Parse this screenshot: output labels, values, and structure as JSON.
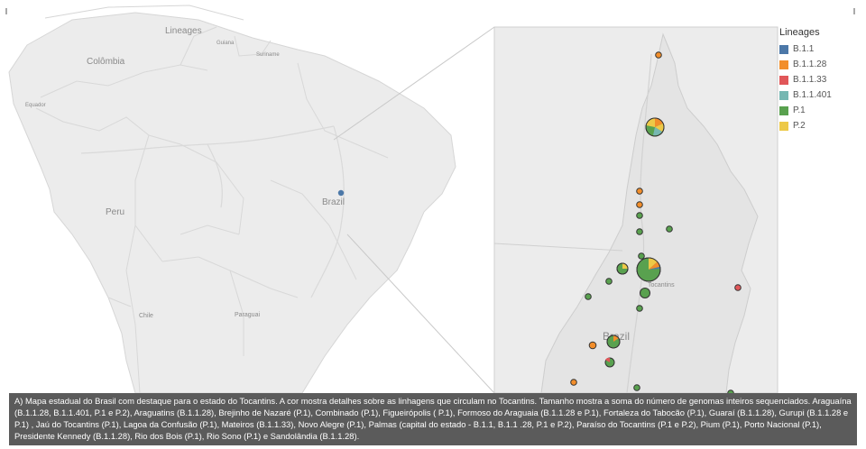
{
  "legend": {
    "title": "Lineages",
    "items": [
      {
        "label": "B.1.1",
        "color": "#4c78a8"
      },
      {
        "label": "B.1.1.28",
        "color": "#f28e2b"
      },
      {
        "label": "B.1.1.33",
        "color": "#e15759"
      },
      {
        "label": "B.1.1.401",
        "color": "#76b7b2"
      },
      {
        "label": "P.1",
        "color": "#59a14f"
      },
      {
        "label": "P.2",
        "color": "#edc948"
      }
    ]
  },
  "map_labels": {
    "lineages_country": "Lineages",
    "colombia": "Colômbia",
    "equador": "Equador",
    "peru": "Peru",
    "brazil_left": "Brazil",
    "chile": "Chile",
    "paraguai": "Paraguai",
    "tocantins": "Tocantins",
    "brazil_right": "Brazil",
    "guiana": "Guiana",
    "suriname": "Suriname"
  },
  "caption": "A) Mapa estadual do Brasil com destaque para o estado do Tocantins. A cor mostra detalhes sobre as linhagens que circulam no Tocantins. Tamanho mostra a soma do número de genomas inteiros sequenciados. Araguaína (B.1.1.28, B.1.1.401, P.1 e P.2), Araguatins (B.1.1.28), Brejinho de Nazaré (P.1), Combinado (P.1), Figueirópolis ( P.1), Formoso do Araguaia (B.1.1.28 e P.1), Fortaleza do Tabocão (P.1), Guaraí (B.1.1.28), Gurupi (B.1.1.28 e P.1) , Jaú do Tocantins (P.1), Lagoa da Confusão (P.1), Mateiros (B.1.1.33), Novo Alegre (P.1), Palmas (capital do estado - B.1.1, B.1.1 .28, P.1 e P.2), Paraíso do Tocantins (P.1 e P.2), Pium (P.1), Porto Nacional (P.1), Presidente Kennedy (B.1.1.28), Rio dos Bois (P.1), Rio Sono (P.1) e Sandolândia (B.1.1.28).",
  "markers": [
    {
      "id": "araguatins",
      "lineages": [
        "B.1.1.28"
      ]
    },
    {
      "id": "araguaina",
      "lineages": [
        "B.1.1.28",
        "B.1.1.401",
        "P.1",
        "P.2"
      ]
    },
    {
      "id": "guarai",
      "lineages": [
        "B.1.1.28"
      ]
    },
    {
      "id": "palmas",
      "lineages": [
        "B.1.1",
        "B.1.1.28",
        "P.1",
        "P.2"
      ]
    },
    {
      "id": "mateiros",
      "lineages": [
        "B.1.1.33"
      ]
    },
    {
      "id": "gurupi",
      "lineages": [
        "B.1.1.28",
        "P.1"
      ]
    }
  ]
}
